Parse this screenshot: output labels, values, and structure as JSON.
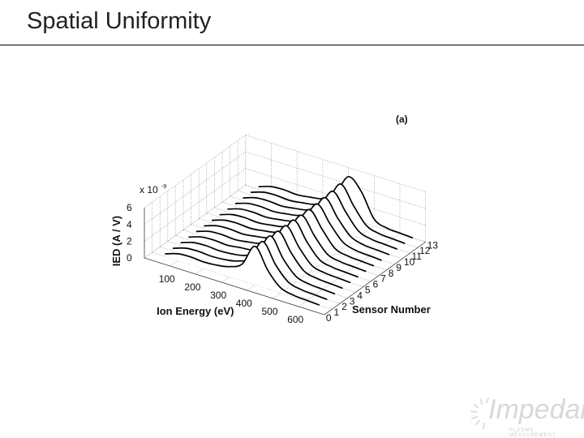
{
  "slide": {
    "title": "Spatial Uniformity"
  },
  "logo": {
    "name": "Impedans",
    "tagline": "PLASMA MEASUREMENT"
  },
  "chart_data": {
    "type": "line",
    "view": "3d-waterfall",
    "panel_label": "(a)",
    "xlabel": "Ion Energy (eV)",
    "ylabel": "Sensor Number",
    "zlabel": "IED (A / V)",
    "z_multiplier": "x 10",
    "z_multiplier_exponent": "-9",
    "x_ticks": [
      "100",
      "200",
      "300",
      "400",
      "500",
      "600"
    ],
    "y_ticks": [
      "0",
      "1",
      "2",
      "3",
      "4",
      "5",
      "6",
      "7",
      "8",
      "9",
      "10",
      "11",
      "12",
      "13"
    ],
    "z_ticks": [
      "0",
      "2",
      "4",
      "6"
    ],
    "xlim": [
      0,
      700
    ],
    "ylim": [
      0,
      13
    ],
    "zlim": [
      0,
      6
    ],
    "grid": true,
    "x": [
      50,
      100,
      150,
      200,
      250,
      300,
      350,
      400,
      450,
      500,
      550,
      600,
      650
    ],
    "series": [
      {
        "sensor": 1,
        "values": [
          0.3,
          0.8,
          0.9,
          0.8,
          0.9,
          1.2,
          2.0,
          4.6,
          2.2,
          0.6,
          0.2,
          0.1,
          0.0
        ]
      },
      {
        "sensor": 2,
        "values": [
          0.3,
          0.8,
          0.9,
          0.8,
          0.9,
          1.2,
          2.0,
          4.5,
          2.2,
          0.6,
          0.2,
          0.1,
          0.0
        ]
      },
      {
        "sensor": 3,
        "values": [
          0.3,
          0.8,
          0.9,
          0.8,
          0.9,
          1.2,
          2.1,
          4.5,
          2.2,
          0.6,
          0.2,
          0.1,
          0.0
        ]
      },
      {
        "sensor": 4,
        "values": [
          0.3,
          0.8,
          0.9,
          0.8,
          1.0,
          1.2,
          2.1,
          4.4,
          2.3,
          0.6,
          0.2,
          0.1,
          0.0
        ]
      },
      {
        "sensor": 5,
        "values": [
          0.3,
          0.8,
          0.9,
          0.8,
          1.0,
          1.3,
          2.1,
          4.4,
          2.3,
          0.6,
          0.2,
          0.1,
          0.0
        ]
      },
      {
        "sensor": 6,
        "values": [
          0.3,
          0.8,
          0.9,
          0.8,
          1.0,
          1.3,
          2.1,
          4.4,
          2.3,
          0.6,
          0.2,
          0.1,
          0.0
        ]
      },
      {
        "sensor": 7,
        "values": [
          0.3,
          0.8,
          0.9,
          0.8,
          1.0,
          1.3,
          2.2,
          4.3,
          2.3,
          0.6,
          0.2,
          0.1,
          0.0
        ]
      },
      {
        "sensor": 8,
        "values": [
          0.3,
          0.8,
          0.9,
          0.8,
          1.0,
          1.3,
          2.2,
          4.3,
          2.4,
          0.6,
          0.2,
          0.1,
          0.0
        ]
      },
      {
        "sensor": 9,
        "values": [
          0.3,
          0.8,
          0.9,
          0.8,
          1.0,
          1.3,
          2.2,
          4.3,
          2.4,
          0.7,
          0.2,
          0.1,
          0.0
        ]
      },
      {
        "sensor": 10,
        "values": [
          0.3,
          0.8,
          0.9,
          0.8,
          1.0,
          1.3,
          2.2,
          4.4,
          2.4,
          0.7,
          0.2,
          0.1,
          0.0
        ]
      },
      {
        "sensor": 11,
        "values": [
          0.3,
          0.8,
          0.9,
          0.8,
          1.0,
          1.3,
          2.3,
          4.5,
          2.5,
          0.7,
          0.2,
          0.1,
          0.0
        ]
      },
      {
        "sensor": 12,
        "values": [
          0.3,
          0.8,
          0.9,
          0.8,
          1.0,
          1.3,
          2.3,
          4.7,
          2.6,
          0.7,
          0.2,
          0.1,
          0.0
        ]
      },
      {
        "sensor": 13,
        "values": [
          0.3,
          0.8,
          0.9,
          0.8,
          1.0,
          1.3,
          2.4,
          4.9,
          3.6,
          0.8,
          0.2,
          0.1,
          0.0
        ]
      }
    ]
  }
}
